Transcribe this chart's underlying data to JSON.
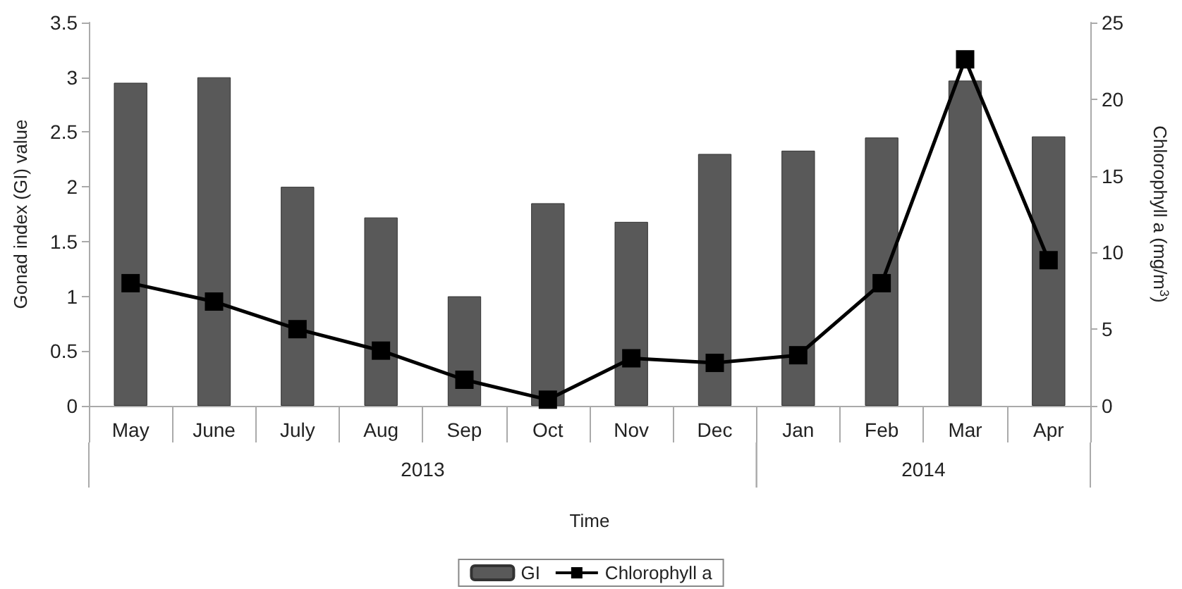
{
  "chart_data": {
    "type": "bar",
    "categories": [
      "May",
      "June",
      "July",
      "Aug",
      "Sep",
      "Oct",
      "Nov",
      "Dec",
      "Jan",
      "Feb",
      "Mar",
      "Apr"
    ],
    "series": [
      {
        "name": "GI",
        "color": "#595959",
        "values": [
          2.95,
          3.0,
          2.0,
          1.72,
          1.0,
          1.85,
          1.68,
          2.3,
          2.33,
          2.45,
          2.97,
          2.46
        ]
      },
      {
        "name": "Chlorophyll a",
        "type": "line",
        "axis": "y2",
        "color": "#000000",
        "marker": "square",
        "line_style": "solid",
        "values": [
          8.0,
          6.8,
          5.0,
          3.6,
          1.7,
          0.4,
          3.1,
          2.8,
          3.3,
          8.0,
          22.6,
          9.5
        ]
      }
    ],
    "xlabel": "Time",
    "ylabel": "Gonad index (GI) value",
    "y2label": "Chlorophyll a (mg/m$^{3}$)",
    "ylim": [
      0,
      3.5
    ],
    "yticks": [
      0,
      0.5,
      1,
      1.5,
      2,
      2.5,
      3,
      3.5
    ],
    "y2lim": [
      0,
      25
    ],
    "y2ticks": [
      0,
      5,
      10,
      15,
      20,
      25
    ],
    "annotations": [
      "2013",
      "2014"
    ],
    "grid": false,
    "legend": "bottom"
  }
}
